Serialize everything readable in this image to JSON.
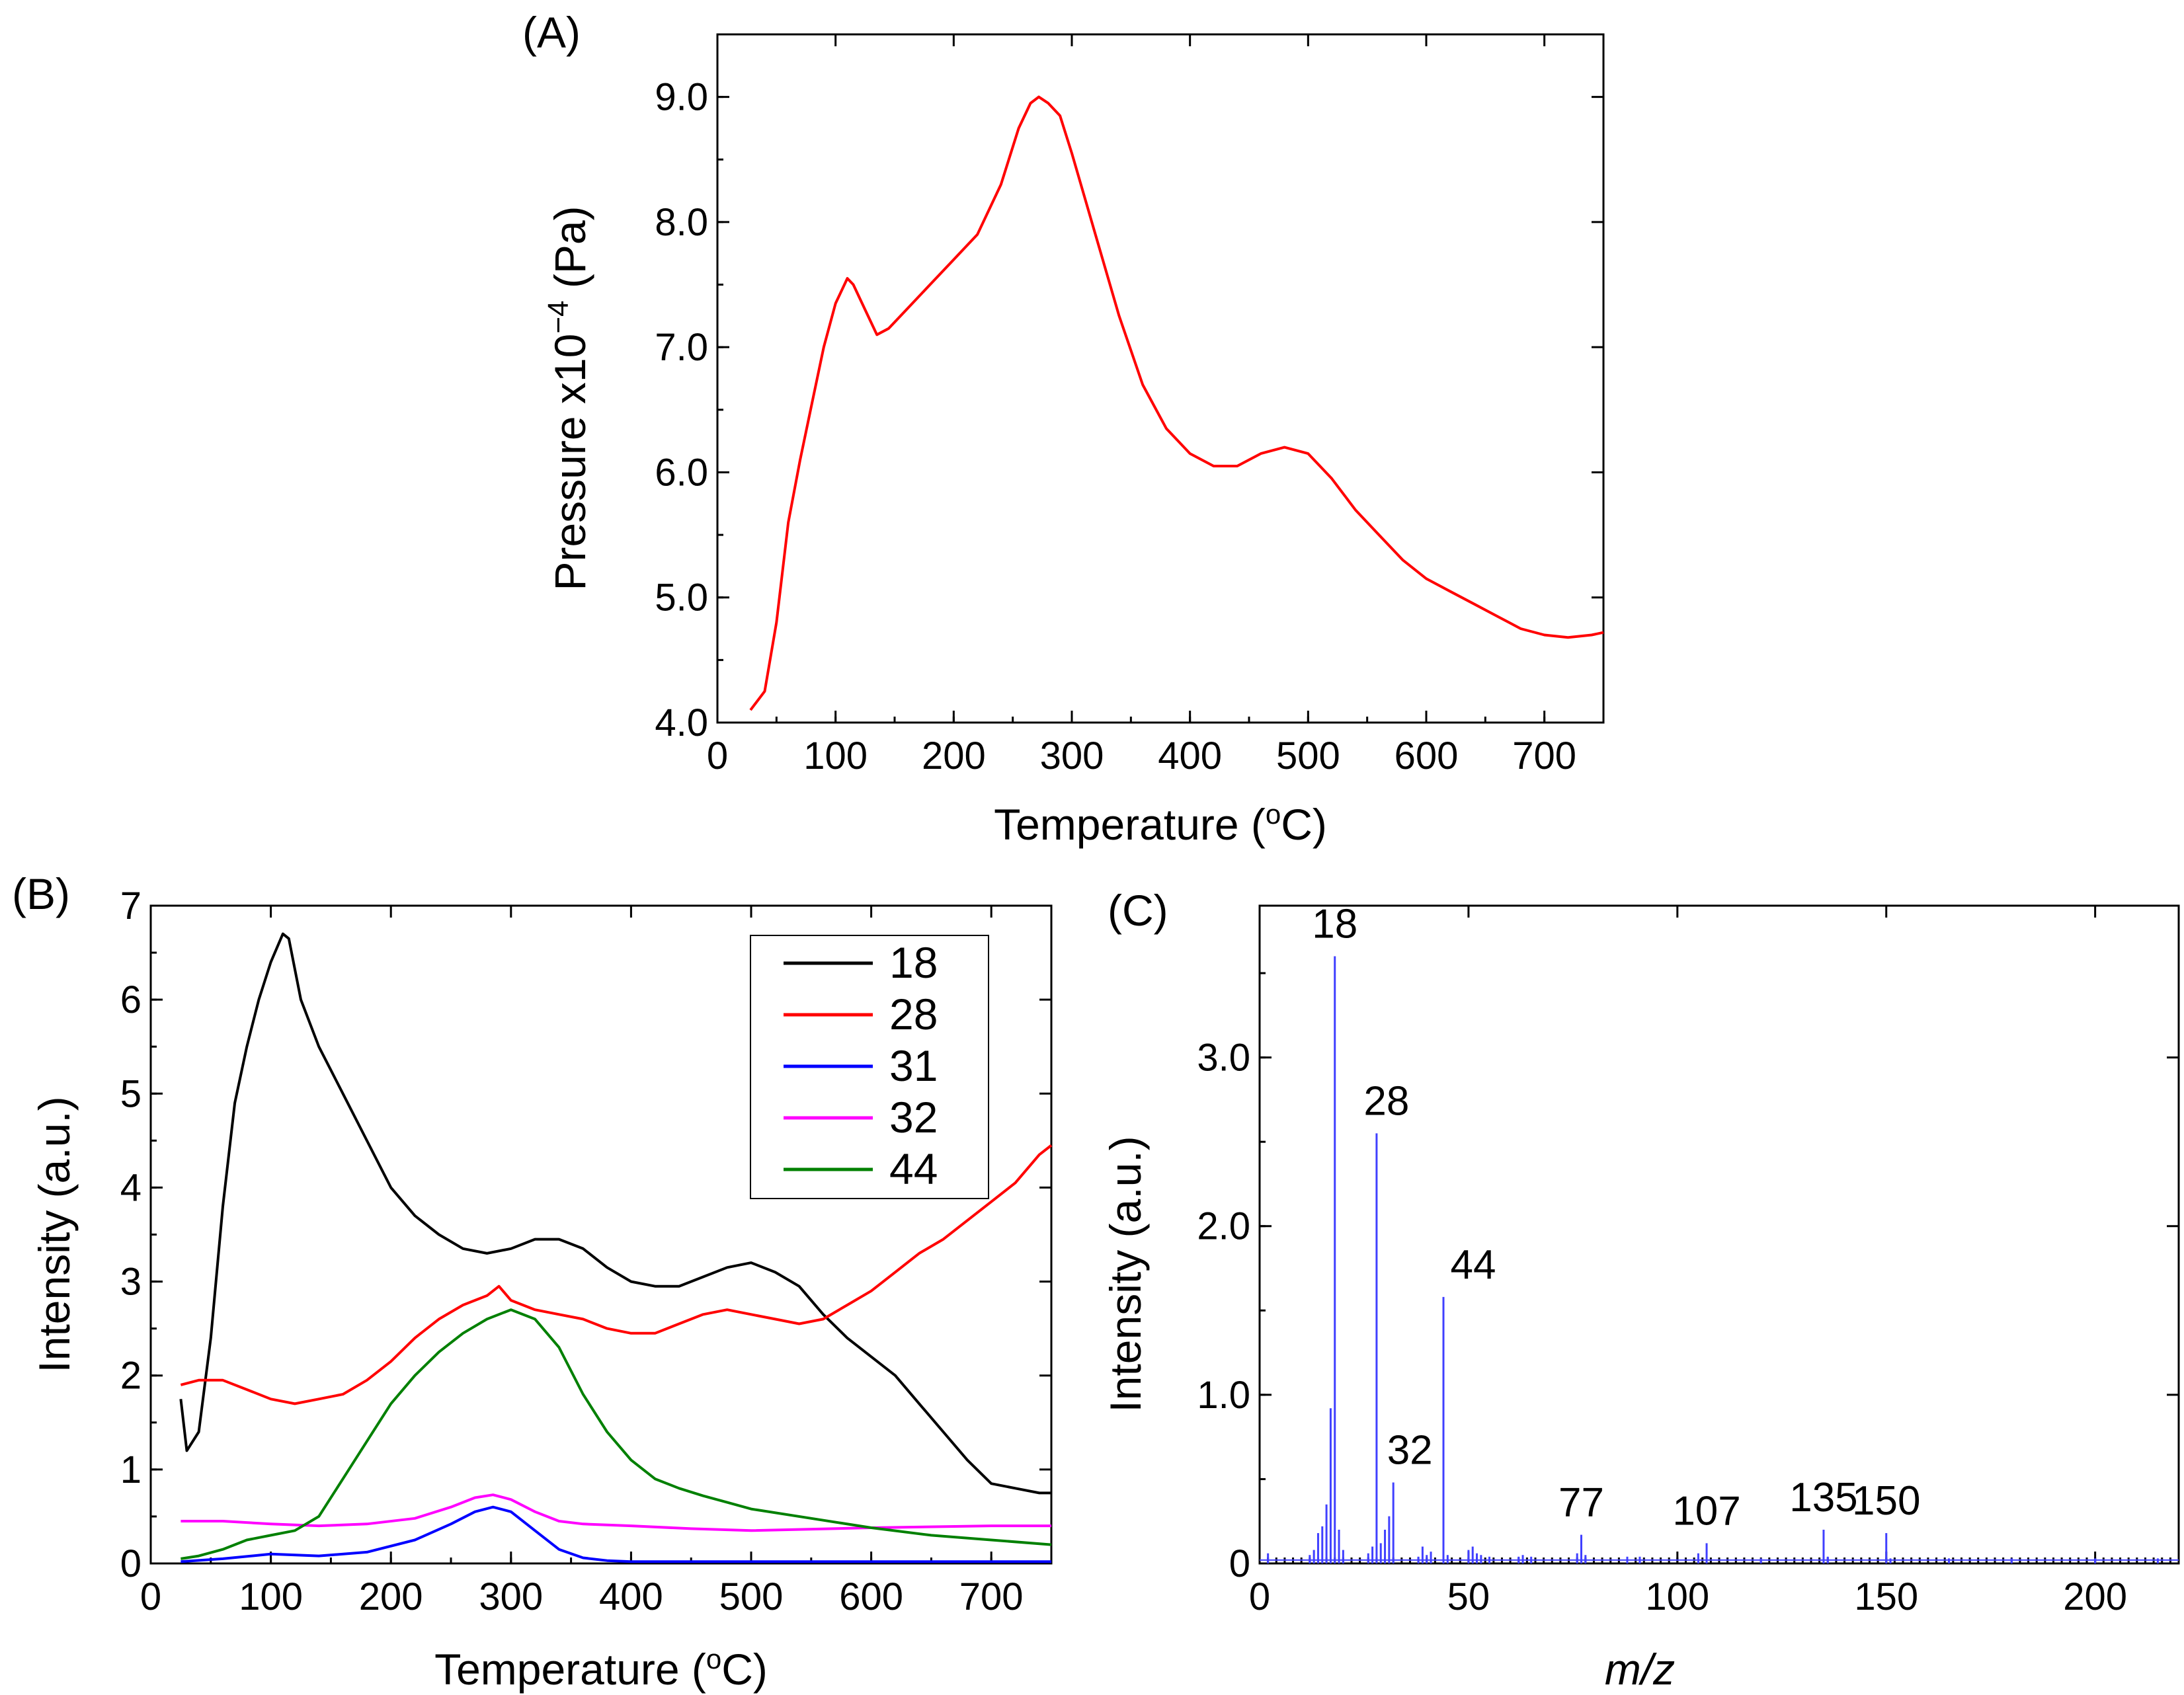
{
  "chart_data": [
    {
      "panel_label": "(A)",
      "type": "line",
      "xlabel": "Temperature (",
      "xlabel_sup": "o",
      "xlabel_end": "C)",
      "ylabel": "Pressure x10",
      "ylabel_sup": "−4",
      "ylabel_end": " (Pa)",
      "xlim": [
        0,
        750
      ],
      "ylim": [
        4.0,
        9.5
      ],
      "xticks": [
        0,
        100,
        200,
        300,
        400,
        500,
        600,
        700
      ],
      "yticks": [
        4.0,
        5.0,
        6.0,
        7.0,
        8.0,
        9.0
      ],
      "ytick_labels": [
        "4.0",
        "5.0",
        "6.0",
        "7.0",
        "8.0",
        "9.0"
      ],
      "series": [
        {
          "name": "Pressure",
          "color": "#ff0000",
          "x": [
            28,
            40,
            50,
            60,
            70,
            80,
            90,
            100,
            110,
            115,
            125,
            135,
            145,
            160,
            180,
            200,
            220,
            240,
            255,
            265,
            272,
            280,
            290,
            300,
            320,
            340,
            360,
            380,
            400,
            420,
            440,
            460,
            480,
            500,
            520,
            540,
            560,
            580,
            600,
            620,
            640,
            660,
            680,
            700,
            720,
            740,
            750
          ],
          "y": [
            4.1,
            4.25,
            4.8,
            5.6,
            6.1,
            6.55,
            7.0,
            7.35,
            7.55,
            7.5,
            7.3,
            7.1,
            7.15,
            7.3,
            7.5,
            7.7,
            7.9,
            8.3,
            8.75,
            8.95,
            9.0,
            8.95,
            8.85,
            8.55,
            7.9,
            7.25,
            6.7,
            6.35,
            6.15,
            6.05,
            6.05,
            6.15,
            6.2,
            6.15,
            5.95,
            5.7,
            5.5,
            5.3,
            5.15,
            5.05,
            4.95,
            4.85,
            4.75,
            4.7,
            4.68,
            4.7,
            4.72
          ]
        }
      ]
    },
    {
      "panel_label": "(B)",
      "type": "line",
      "xlabel": "Temperature (",
      "xlabel_sup": "o",
      "xlabel_end": "C)",
      "ylabel": "Intensity (a.u.)",
      "xlim": [
        0,
        750
      ],
      "ylim": [
        0,
        7
      ],
      "xticks": [
        0,
        100,
        200,
        300,
        400,
        500,
        600,
        700
      ],
      "yticks": [
        0,
        1,
        2,
        3,
        4,
        5,
        6,
        7
      ],
      "legend": "top-right",
      "series": [
        {
          "name": "18",
          "color": "#000000",
          "x": [
            25,
            30,
            40,
            50,
            60,
            70,
            80,
            90,
            100,
            110,
            115,
            125,
            140,
            160,
            180,
            200,
            220,
            240,
            260,
            280,
            300,
            320,
            340,
            360,
            380,
            400,
            420,
            440,
            460,
            480,
            500,
            520,
            540,
            560,
            580,
            600,
            620,
            640,
            660,
            680,
            700,
            720,
            740,
            750
          ],
          "y": [
            1.75,
            1.2,
            1.4,
            2.4,
            3.8,
            4.9,
            5.5,
            6.0,
            6.4,
            6.7,
            6.65,
            6.0,
            5.5,
            5.0,
            4.5,
            4.0,
            3.7,
            3.5,
            3.35,
            3.3,
            3.35,
            3.45,
            3.45,
            3.35,
            3.15,
            3.0,
            2.95,
            2.95,
            3.05,
            3.15,
            3.2,
            3.1,
            2.95,
            2.65,
            2.4,
            2.2,
            2.0,
            1.7,
            1.4,
            1.1,
            0.85,
            0.8,
            0.75,
            0.75
          ]
        },
        {
          "name": "28",
          "color": "#ff0000",
          "x": [
            25,
            40,
            60,
            80,
            100,
            120,
            140,
            160,
            180,
            200,
            220,
            240,
            260,
            280,
            290,
            300,
            320,
            340,
            360,
            380,
            400,
            420,
            440,
            460,
            480,
            500,
            520,
            540,
            560,
            580,
            600,
            620,
            640,
            660,
            680,
            700,
            720,
            740,
            750
          ],
          "y": [
            1.9,
            1.95,
            1.95,
            1.85,
            1.75,
            1.7,
            1.75,
            1.8,
            1.95,
            2.15,
            2.4,
            2.6,
            2.75,
            2.85,
            2.95,
            2.8,
            2.7,
            2.65,
            2.6,
            2.5,
            2.45,
            2.45,
            2.55,
            2.65,
            2.7,
            2.65,
            2.6,
            2.55,
            2.6,
            2.75,
            2.9,
            3.1,
            3.3,
            3.45,
            3.65,
            3.85,
            4.05,
            4.35,
            4.45
          ]
        },
        {
          "name": "31",
          "color": "#0000ff",
          "x": [
            25,
            60,
            100,
            140,
            180,
            220,
            250,
            270,
            285,
            300,
            320,
            340,
            360,
            380,
            400,
            450,
            500,
            600,
            700,
            750
          ],
          "y": [
            0.02,
            0.05,
            0.1,
            0.08,
            0.12,
            0.25,
            0.42,
            0.55,
            0.6,
            0.55,
            0.35,
            0.15,
            0.06,
            0.03,
            0.02,
            0.02,
            0.02,
            0.02,
            0.02,
            0.02
          ]
        },
        {
          "name": "32",
          "color": "#ff00ff",
          "x": [
            25,
            60,
            100,
            140,
            180,
            220,
            250,
            270,
            285,
            300,
            320,
            340,
            360,
            400,
            450,
            500,
            600,
            700,
            750
          ],
          "y": [
            0.45,
            0.45,
            0.42,
            0.4,
            0.42,
            0.48,
            0.6,
            0.7,
            0.73,
            0.68,
            0.55,
            0.45,
            0.42,
            0.4,
            0.37,
            0.35,
            0.38,
            0.4,
            0.4
          ]
        },
        {
          "name": "44",
          "color": "#008000",
          "x": [
            25,
            40,
            60,
            80,
            100,
            120,
            140,
            160,
            180,
            200,
            220,
            240,
            260,
            280,
            300,
            320,
            340,
            360,
            380,
            400,
            420,
            440,
            460,
            480,
            500,
            550,
            600,
            650,
            700,
            750
          ],
          "y": [
            0.05,
            0.08,
            0.15,
            0.25,
            0.3,
            0.35,
            0.5,
            0.9,
            1.3,
            1.7,
            2.0,
            2.25,
            2.45,
            2.6,
            2.7,
            2.6,
            2.3,
            1.8,
            1.4,
            1.1,
            0.9,
            0.8,
            0.72,
            0.65,
            0.58,
            0.48,
            0.38,
            0.3,
            0.25,
            0.2
          ]
        }
      ]
    },
    {
      "panel_label": "(C)",
      "type": "bar",
      "xlabel": "m/z",
      "ylabel": "Intensity (a.u.)",
      "xlim": [
        0,
        220
      ],
      "ylim": [
        0,
        3.9
      ],
      "xticks": [
        0,
        50,
        100,
        150,
        200
      ],
      "yticks": [
        0,
        1.0,
        2.0,
        3.0
      ],
      "ytick_labels": [
        "0",
        "1.0",
        "2.0",
        "3.0"
      ],
      "color": "#4040ff",
      "peaks": [
        {
          "mz": 2,
          "v": 0.06
        },
        {
          "mz": 12,
          "v": 0.05
        },
        {
          "mz": 13,
          "v": 0.08
        },
        {
          "mz": 14,
          "v": 0.18
        },
        {
          "mz": 15,
          "v": 0.22
        },
        {
          "mz": 16,
          "v": 0.35
        },
        {
          "mz": 17,
          "v": 0.92
        },
        {
          "mz": 18,
          "v": 3.6
        },
        {
          "mz": 19,
          "v": 0.2
        },
        {
          "mz": 20,
          "v": 0.08
        },
        {
          "mz": 26,
          "v": 0.06
        },
        {
          "mz": 27,
          "v": 0.1
        },
        {
          "mz": 28,
          "v": 2.55
        },
        {
          "mz": 29,
          "v": 0.12
        },
        {
          "mz": 30,
          "v": 0.2
        },
        {
          "mz": 31,
          "v": 0.28
        },
        {
          "mz": 32,
          "v": 0.48
        },
        {
          "mz": 38,
          "v": 0.04
        },
        {
          "mz": 39,
          "v": 0.1
        },
        {
          "mz": 40,
          "v": 0.05
        },
        {
          "mz": 41,
          "v": 0.07
        },
        {
          "mz": 44,
          "v": 1.58
        },
        {
          "mz": 45,
          "v": 0.05
        },
        {
          "mz": 50,
          "v": 0.08
        },
        {
          "mz": 51,
          "v": 0.1
        },
        {
          "mz": 52,
          "v": 0.06
        },
        {
          "mz": 53,
          "v": 0.05
        },
        {
          "mz": 55,
          "v": 0.04
        },
        {
          "mz": 62,
          "v": 0.04
        },
        {
          "mz": 63,
          "v": 0.05
        },
        {
          "mz": 65,
          "v": 0.04
        },
        {
          "mz": 76,
          "v": 0.06
        },
        {
          "mz": 77,
          "v": 0.17
        },
        {
          "mz": 78,
          "v": 0.05
        },
        {
          "mz": 88,
          "v": 0.04
        },
        {
          "mz": 91,
          "v": 0.04
        },
        {
          "mz": 105,
          "v": 0.06
        },
        {
          "mz": 107,
          "v": 0.12
        },
        {
          "mz": 120,
          "v": 0.03
        },
        {
          "mz": 135,
          "v": 0.2
        },
        {
          "mz": 136,
          "v": 0.04
        },
        {
          "mz": 150,
          "v": 0.18
        },
        {
          "mz": 151,
          "v": 0.03
        },
        {
          "mz": 165,
          "v": 0.03
        },
        {
          "mz": 180,
          "v": 0.03
        },
        {
          "mz": 200,
          "v": 0.03
        },
        {
          "mz": 215,
          "v": 0.03
        }
      ],
      "annotations": [
        {
          "text": "18",
          "mz": 18,
          "v": 3.6
        },
        {
          "text": "28",
          "mz": 28,
          "v": 2.55
        },
        {
          "text": "44",
          "mz": 44,
          "v": 1.58
        },
        {
          "text": "32",
          "mz": 32,
          "v": 0.48
        },
        {
          "text": "77",
          "mz": 77,
          "v": 0.17
        },
        {
          "text": "107",
          "mz": 107,
          "v": 0.12
        },
        {
          "text": "135",
          "mz": 135,
          "v": 0.2
        },
        {
          "text": "150",
          "mz": 150,
          "v": 0.18
        }
      ]
    }
  ]
}
